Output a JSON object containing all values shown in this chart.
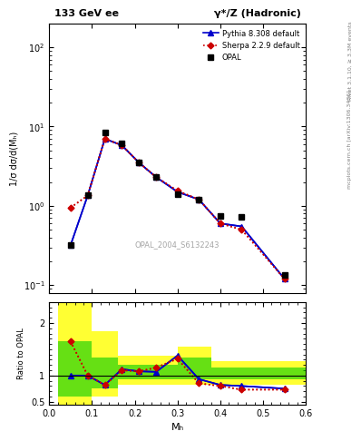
{
  "title_left": "133 GeV ee",
  "title_right": "γ*/Z (Hadronic)",
  "ylabel_main": "1/σ dσ/d(Mₕ)",
  "ylabel_ratio": "Ratio to OPAL",
  "xlabel": "Mₕ",
  "watermark": "OPAL_2004_S6132243",
  "right_label": "Rivet 3.1.10, ≥ 3.3M events",
  "right_label2": "mcplots.cern.ch [arXiv:1306.3436]",
  "opal_x": [
    0.05,
    0.09,
    0.13,
    0.17,
    0.21,
    0.25,
    0.3,
    0.35,
    0.4,
    0.45,
    0.55
  ],
  "opal_y": [
    0.32,
    1.35,
    8.5,
    6.2,
    3.5,
    2.3,
    1.4,
    1.2,
    0.75,
    0.72,
    0.135
  ],
  "pythia_x": [
    0.05,
    0.09,
    0.13,
    0.17,
    0.21,
    0.25,
    0.3,
    0.35,
    0.4,
    0.45,
    0.55
  ],
  "pythia_y": [
    0.32,
    1.35,
    7.0,
    5.8,
    3.5,
    2.3,
    1.5,
    1.2,
    0.6,
    0.55,
    0.12
  ],
  "sherpa_x": [
    0.05,
    0.09,
    0.13,
    0.17,
    0.21,
    0.25,
    0.3,
    0.35,
    0.4,
    0.45,
    0.55
  ],
  "sherpa_y": [
    0.95,
    1.35,
    7.0,
    5.8,
    3.5,
    2.3,
    1.55,
    1.2,
    0.6,
    0.5,
    0.12
  ],
  "pythia_ratio_x": [
    0.05,
    0.09,
    0.13,
    0.17,
    0.21,
    0.25,
    0.3,
    0.35,
    0.4,
    0.45,
    0.55
  ],
  "pythia_ratio_y": [
    1.0,
    1.0,
    0.82,
    1.12,
    1.08,
    1.07,
    1.38,
    0.93,
    0.82,
    0.8,
    0.75
  ],
  "sherpa_ratio_x": [
    0.05,
    0.09,
    0.13,
    0.17,
    0.21,
    0.25,
    0.3,
    0.35,
    0.4,
    0.45,
    0.55
  ],
  "sherpa_ratio_y": [
    1.65,
    1.0,
    0.82,
    1.1,
    1.08,
    1.15,
    1.32,
    0.85,
    0.8,
    0.73,
    0.73
  ],
  "yellow_band_x": [
    0.02,
    0.1,
    0.16,
    0.3,
    0.38,
    0.58
  ],
  "yellow_band_w": [
    0.08,
    0.06,
    0.14,
    0.08,
    0.2,
    0.02
  ],
  "yellow_band_lo": [
    0.42,
    0.6,
    0.82,
    0.82,
    0.82,
    0.82
  ],
  "yellow_band_hi": [
    2.5,
    1.85,
    1.38,
    1.55,
    1.28,
    1.28
  ],
  "green_band_x": [
    0.02,
    0.1,
    0.16,
    0.3,
    0.38,
    0.58
  ],
  "green_band_w": [
    0.08,
    0.06,
    0.14,
    0.08,
    0.2,
    0.02
  ],
  "green_band_lo": [
    0.6,
    0.76,
    0.92,
    0.92,
    0.92,
    0.92
  ],
  "green_band_hi": [
    1.65,
    1.35,
    1.2,
    1.35,
    1.15,
    1.15
  ],
  "color_opal": "#000000",
  "color_pythia": "#0000cc",
  "color_sherpa": "#cc0000",
  "color_yellow": "#ffff00",
  "color_green": "#00cc00",
  "background": "#ffffff",
  "ylim_main": [
    0.08,
    200
  ],
  "ylim_ratio": [
    0.45,
    2.4
  ],
  "xlim": [
    0.0,
    0.6
  ]
}
